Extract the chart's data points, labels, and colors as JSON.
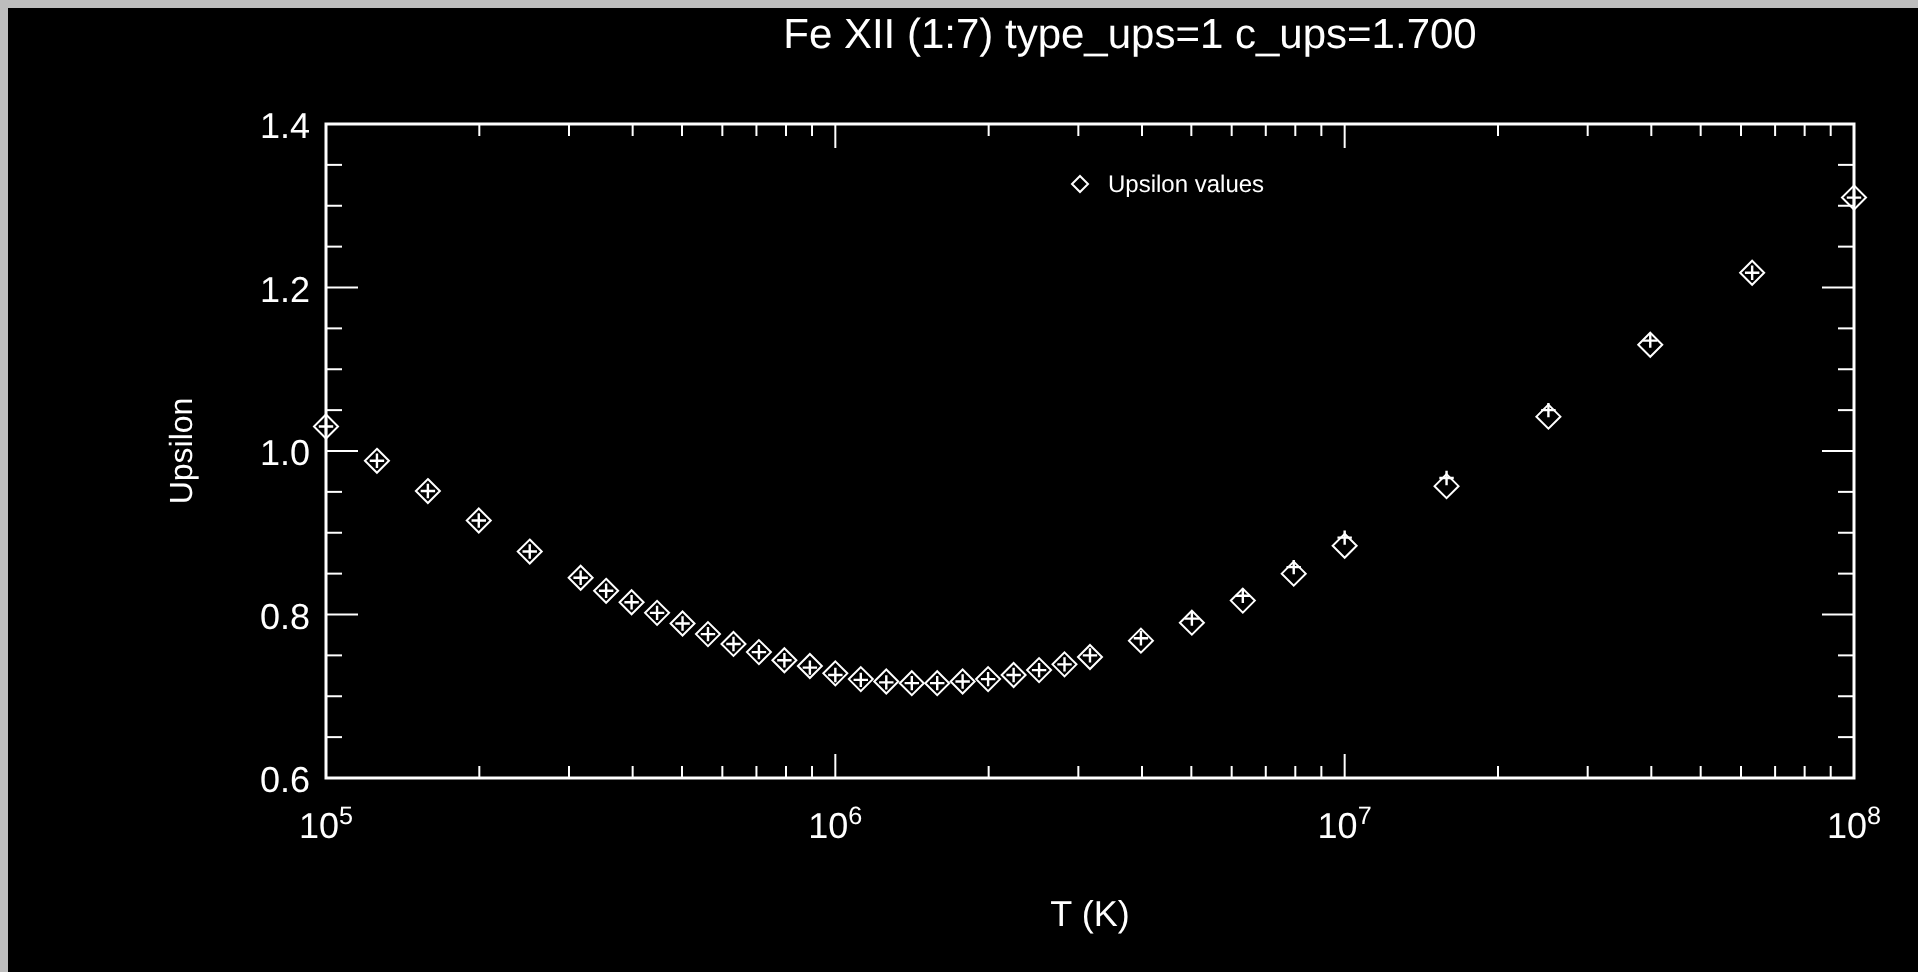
{
  "chart_data": {
    "type": "scatter",
    "title": "Fe XII (1:7) type_ups=1 c_ups=1.700",
    "xlabel": "T (K)",
    "ylabel": "Upsilon",
    "log": "x",
    "legend": "top",
    "grid": false,
    "xlim": [
      100000,
      100000000
    ],
    "xticks": [
      {
        "value": 100000,
        "label": "10$^{5}$"
      },
      {
        "value": 1000000,
        "label": "10$^{6}$"
      },
      {
        "value": 10000000,
        "label": "10$^{7}$"
      },
      {
        "value": 100000000,
        "label": "10$^{8}$"
      }
    ],
    "ylim": [
      0.6,
      1.4
    ],
    "yticks": [
      {
        "value": 0.6,
        "label": "0.6"
      },
      {
        "value": 0.8,
        "label": "0.8"
      },
      {
        "value": 1.0,
        "label": "1.0"
      },
      {
        "value": 1.2,
        "label": "1.2"
      },
      {
        "value": 1.4,
        "label": "1.4"
      }
    ],
    "x": [
      100000,
      125900,
      158500,
      199500,
      251200,
      316200,
      354800,
      398100,
      446700,
      501200,
      562300,
      631000,
      707900,
      794300,
      891300,
      1000000,
      1122000,
      1259000,
      1413000,
      1585000,
      1778000,
      1995000,
      2239000,
      2512000,
      2818000,
      3162000,
      3981000,
      5012000,
      6310000,
      7943000,
      10000000,
      15850000,
      25120000,
      39810000,
      63100000,
      100000000
    ],
    "series": [
      {
        "name": "Upsilon values",
        "color": "#ffffff",
        "marker": "diamond",
        "values": [
          1.03,
          0.988,
          0.951,
          0.915,
          0.877,
          0.845,
          0.829,
          0.815,
          0.802,
          0.789,
          0.776,
          0.764,
          0.754,
          0.744,
          0.737,
          0.728,
          0.721,
          0.718,
          0.716,
          0.716,
          0.718,
          0.721,
          0.726,
          0.732,
          0.739,
          0.748,
          0.768,
          0.79,
          0.817,
          0.85,
          0.884,
          0.957,
          1.042,
          1.13,
          1.218,
          1.31
        ]
      },
      {
        "color": "#ffffff",
        "marker": "cross",
        "values": [
          1.03,
          0.988,
          0.951,
          0.915,
          0.877,
          0.845,
          0.829,
          0.815,
          0.802,
          0.789,
          0.776,
          0.764,
          0.754,
          0.744,
          0.735,
          0.726,
          0.72,
          0.717,
          0.716,
          0.716,
          0.718,
          0.721,
          0.726,
          0.732,
          0.739,
          0.75,
          0.771,
          0.795,
          0.823,
          0.858,
          0.894,
          0.967,
          1.05,
          1.135,
          1.218,
          1.31
        ]
      }
    ]
  }
}
